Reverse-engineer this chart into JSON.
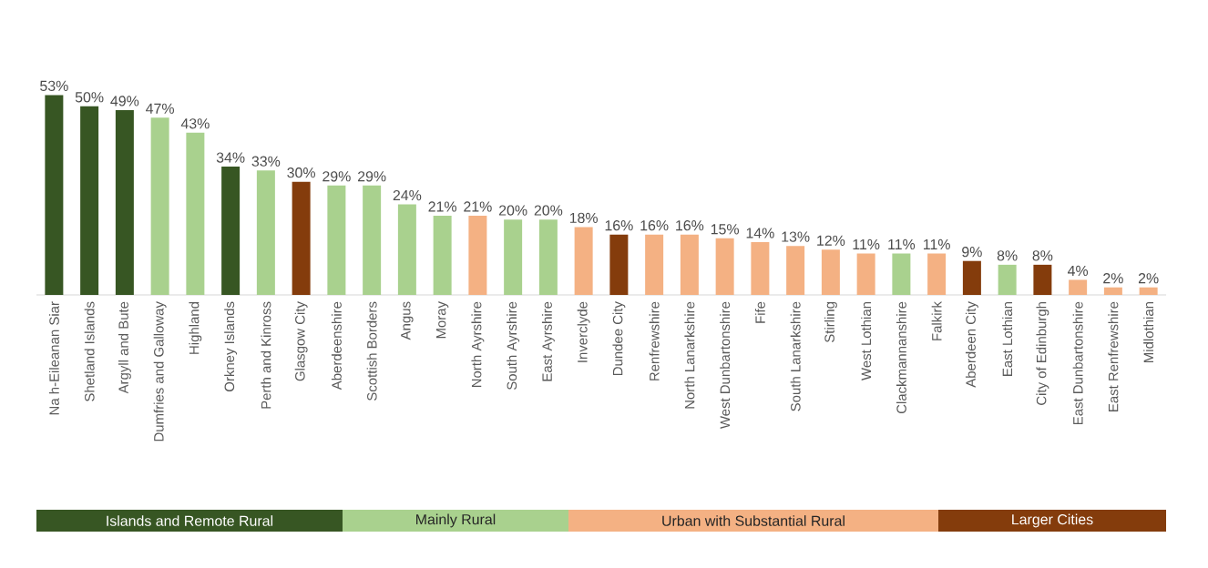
{
  "chart_data": {
    "type": "bar",
    "legend": "bottom",
    "categories": [
      "Na h-Eileanan Siar",
      "Shetland Islands",
      "Argyll and Bute",
      "Dumfries and Galloway",
      "Highland",
      "Orkney Islands",
      "Perth and Kinross",
      "Glasgow City",
      "Aberdeenshire",
      "Scottish Borders",
      "Angus",
      "Moray",
      "North Ayrshire",
      "South Ayrshire",
      "East Ayrshire",
      "Inverclyde",
      "Dundee City",
      "Renfrewshire",
      "North Lanarkshire",
      "West Dunbartonshire",
      "Fife",
      "South Lanarkshire",
      "Stirling",
      "West Lothian",
      "Clackmannanshire",
      "Falkirk",
      "Aberdeen City",
      "East Lothian",
      "City of Edinburgh",
      "East Dunbartonshire",
      "East Renfrewshire",
      "Midlothian"
    ],
    "series": [
      {
        "name": "Islands and Remote Rural",
        "color": "#375623",
        "values": [
          53,
          50,
          49,
          null,
          null,
          34,
          null,
          null,
          null,
          null,
          null,
          null,
          null,
          null,
          null,
          null,
          null,
          null,
          null,
          null,
          null,
          null,
          null,
          null,
          null,
          null,
          null,
          null,
          null,
          null,
          null,
          null
        ],
        "value_labels": [
          "53%",
          "50%",
          "49%",
          null,
          null,
          "34%",
          null,
          null,
          null,
          null,
          null,
          null,
          null,
          null,
          null,
          null,
          null,
          null,
          null,
          null,
          null,
          null,
          null,
          null,
          null,
          null,
          null,
          null,
          null,
          null,
          null,
          null
        ]
      },
      {
        "name": "Mainly Rural",
        "color": "#a9d18e",
        "values": [
          null,
          null,
          null,
          47,
          43,
          null,
          33,
          null,
          29,
          29,
          24,
          21,
          null,
          20,
          20,
          null,
          null,
          null,
          null,
          null,
          null,
          null,
          null,
          null,
          11,
          null,
          null,
          8,
          null,
          null,
          null,
          null
        ],
        "value_labels": [
          null,
          null,
          null,
          "47%",
          "43%",
          null,
          "33%",
          null,
          "29%",
          "29%",
          "24%",
          "21%",
          null,
          "20%",
          "20%",
          null,
          null,
          null,
          null,
          null,
          null,
          null,
          null,
          null,
          "11%",
          null,
          null,
          "8%",
          null,
          null,
          null,
          null
        ]
      },
      {
        "name": "Urban with Substantial Rural",
        "color": "#f4b183",
        "values": [
          null,
          null,
          null,
          null,
          null,
          null,
          null,
          null,
          null,
          null,
          null,
          null,
          21,
          null,
          null,
          18,
          null,
          16,
          16,
          15,
          14,
          13,
          12,
          11,
          null,
          11,
          null,
          null,
          null,
          4,
          2,
          2
        ],
        "value_labels": [
          null,
          null,
          null,
          null,
          null,
          null,
          null,
          null,
          null,
          null,
          null,
          null,
          "21%",
          null,
          null,
          "18%",
          null,
          "16%",
          "16%",
          "15%",
          "14%",
          "13%",
          "12%",
          "11%",
          null,
          "11%",
          null,
          null,
          null,
          "4%",
          "2%",
          "2%"
        ]
      },
      {
        "name": "Larger Cities",
        "color": "#843c0c",
        "values": [
          null,
          null,
          null,
          null,
          null,
          null,
          null,
          30,
          null,
          null,
          null,
          null,
          null,
          null,
          null,
          null,
          16,
          null,
          null,
          null,
          null,
          null,
          null,
          null,
          null,
          null,
          9,
          null,
          8,
          null,
          null,
          null
        ],
        "value_labels": [
          null,
          null,
          null,
          null,
          null,
          null,
          null,
          "30%",
          null,
          null,
          null,
          null,
          null,
          null,
          null,
          null,
          "16%",
          null,
          null,
          null,
          null,
          null,
          null,
          null,
          null,
          null,
          "9%",
          null,
          "8%",
          null,
          null,
          null
        ]
      }
    ]
  }
}
